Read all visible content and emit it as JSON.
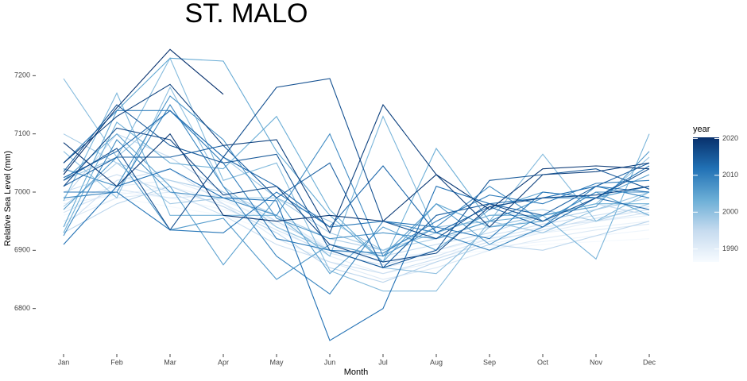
{
  "chart_data": {
    "type": "line",
    "title": "ST. MALO",
    "x_label": "Month",
    "y_label": "Relative Sea Level (mm)",
    "categories": [
      "Jan",
      "Feb",
      "Mar",
      "Apr",
      "May",
      "Jun",
      "Jul",
      "Aug",
      "Sep",
      "Oct",
      "Nov",
      "Dec"
    ],
    "ylim": [
      6730,
      7255
    ],
    "yticks": [
      6800,
      6900,
      7000,
      7100,
      7200
    ],
    "grid": false,
    "legend": {
      "title": "year",
      "position": "right",
      "colors": [
        "#f7fbff",
        "#c6dbef",
        "#6baed6",
        "#2171b5",
        "#08306b"
      ],
      "lim": [
        1986.5,
        2020.3
      ],
      "ticks": [
        1990,
        2000,
        2010,
        2020
      ]
    },
    "series": [
      {
        "year": 1987,
        "values": [
          6960,
          6990,
          6975,
          6960,
          6930,
          6900,
          6880,
          6890,
          6900,
          6910,
          6915,
          6920
        ]
      },
      {
        "year": 1988,
        "values": [
          6970,
          7000,
          6990,
          6970,
          6945,
          6910,
          6890,
          6895,
          6905,
          6915,
          6925,
          6935
        ]
      },
      {
        "year": 1989,
        "values": [
          6980,
          6995,
          7010,
          6985,
          6950,
          6905,
          6880,
          6900,
          6920,
          6930,
          6940,
          6950
        ]
      },
      {
        "year": 1990,
        "values": [
          6985,
          7010,
          7020,
          6990,
          6940,
          6890,
          6860,
          6880,
          6910,
          6930,
          6950,
          6960
        ]
      },
      {
        "year": 1991,
        "values": [
          6950,
          6990,
          7000,
          6980,
          6920,
          6880,
          6850,
          6870,
          6900,
          6920,
          6935,
          6945
        ]
      },
      {
        "year": 1992,
        "values": [
          6965,
          7005,
          6990,
          6995,
          6960,
          6900,
          6870,
          6890,
          6920,
          6940,
          6950,
          6965
        ]
      },
      {
        "year": 1993,
        "values": [
          6940,
          7020,
          7040,
          6980,
          6935,
          6895,
          6875,
          6900,
          6925,
          6945,
          6960,
          6975
        ]
      },
      {
        "year": 1994,
        "values": [
          7000,
          7030,
          7000,
          6960,
          6910,
          6880,
          6860,
          6885,
          6915,
          6935,
          6955,
          6970
        ]
      },
      {
        "year": 1995,
        "values": [
          6990,
          7100,
          7060,
          7000,
          6950,
          6900,
          6890,
          6910,
          6930,
          6960,
          6980,
          6960
        ]
      },
      {
        "year": 1996,
        "values": [
          6930,
          6980,
          7010,
          6975,
          6930,
          6870,
          6845,
          6880,
          6910,
          6900,
          6925,
          6950
        ]
      },
      {
        "year": 1997,
        "values": [
          6975,
          7050,
          7020,
          7000,
          6960,
          6920,
          6900,
          6920,
          6940,
          6950,
          6970,
          6990
        ]
      },
      {
        "year": 1998,
        "values": [
          7100,
          7050,
          6980,
          6990,
          6990,
          6930,
          6900,
          6930,
          6960,
          6970,
          6950,
          6980
        ]
      },
      {
        "year": 1999,
        "values": [
          7020,
          7060,
          7140,
          7060,
          6990,
          6950,
          6900,
          6940,
          6950,
          6930,
          6970,
          7000
        ]
      },
      {
        "year": 2000,
        "values": [
          7070,
          6990,
          7180,
          7010,
          6940,
          6900,
          6870,
          6860,
          6940,
          6960,
          6980,
          7060
        ]
      },
      {
        "year": 2001,
        "values": [
          7195,
          7060,
          7230,
          7020,
          7050,
          6865,
          6830,
          6830,
          6950,
          7065,
          6950,
          7000
        ]
      },
      {
        "year": 2002,
        "values": [
          6985,
          7170,
          6960,
          6960,
          6960,
          6890,
          7130,
          6930,
          6960,
          6960,
          6885,
          7100
        ]
      },
      {
        "year": 2003,
        "values": [
          6930,
          7120,
          7050,
          7040,
          7130,
          6970,
          6880,
          7075,
          6950,
          6960,
          6980,
          6980
        ]
      },
      {
        "year": 2004,
        "values": [
          6940,
          7140,
          7230,
          7225,
          7070,
          6960,
          6880,
          6980,
          6940,
          6950,
          7000,
          6960
        ]
      },
      {
        "year": 2005,
        "values": [
          7020,
          7100,
          7010,
          6875,
          6990,
          6860,
          6940,
          6900,
          6970,
          7000,
          6990,
          7030
        ]
      },
      {
        "year": 2006,
        "values": [
          6970,
          7060,
          6935,
          6955,
          6850,
          6910,
          6890,
          6980,
          6910,
          6960,
          6975,
          7070
        ]
      },
      {
        "year": 2007,
        "values": [
          7040,
          7010,
          7165,
          7090,
          6955,
          6920,
          6930,
          6920,
          6950,
          6990,
          6990,
          7010
        ]
      },
      {
        "year": 2008,
        "values": [
          6925,
          7090,
          7000,
          6990,
          6960,
          7100,
          6890,
          6940,
          7010,
          6950,
          7000,
          7000
        ]
      },
      {
        "year": 2009,
        "values": [
          6990,
          7000,
          7150,
          7010,
          6890,
          6825,
          6950,
          6930,
          6900,
          6940,
          7010,
          6990
        ]
      },
      {
        "year": 2010,
        "values": [
          7050,
          7140,
          7140,
          7050,
          6920,
          6900,
          6895,
          6950,
          6995,
          6980,
          7015,
          7020
        ]
      },
      {
        "year": 2011,
        "values": [
          7000,
          7000,
          6935,
          6930,
          7000,
          6940,
          6950,
          6940,
          6920,
          7000,
          6990,
          7045
        ]
      },
      {
        "year": 2012,
        "values": [
          6910,
          7010,
          7040,
          6990,
          6985,
          6745,
          6800,
          7010,
          6980,
          6990,
          7010,
          7000
        ]
      },
      {
        "year": 2013,
        "values": [
          7025,
          7070,
          7140,
          7060,
          7010,
          6940,
          7045,
          6930,
          6975,
          6940,
          6990,
          6970
        ]
      },
      {
        "year": 2014,
        "values": [
          7010,
          7060,
          7060,
          7080,
          6990,
          7050,
          6870,
          6960,
          6980,
          6960,
          7010,
          7050
        ]
      },
      {
        "year": 2015,
        "values": [
          7035,
          7150,
          7080,
          7050,
          7065,
          6900,
          6870,
          6900,
          7020,
          7030,
          7040,
          7005
        ]
      },
      {
        "year": 2016,
        "values": [
          7020,
          7075,
          6935,
          7060,
          7180,
          7195,
          6950,
          6920,
          6980,
          6950,
          6990,
          7040
        ]
      },
      {
        "year": 2017,
        "values": [
          7010,
          7110,
          7090,
          6995,
          7010,
          6910,
          6880,
          6895,
          6975,
          6990,
          6995,
          7010
        ]
      },
      {
        "year": 2018,
        "values": [
          7050,
          7130,
          7185,
          7080,
          7090,
          6930,
          7150,
          7030,
          6940,
          7030,
          7035,
          7050
        ]
      },
      {
        "year": 2019,
        "values": [
          7085,
          7010,
          7100,
          6960,
          6950,
          6960,
          6950,
          7030,
          6970,
          7040,
          7045,
          7040
        ]
      },
      {
        "year": 2020,
        "values": [
          7030,
          7145,
          7245,
          7168,
          null,
          null,
          null,
          null,
          null,
          null,
          null,
          null
        ]
      }
    ]
  }
}
